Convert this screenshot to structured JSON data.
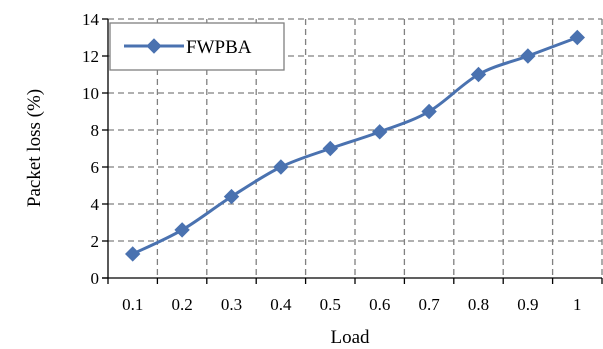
{
  "chart_data": {
    "type": "line",
    "x": [
      0.1,
      0.2,
      0.3,
      0.4,
      0.5,
      0.6,
      0.7,
      0.8,
      0.9,
      1
    ],
    "x_tick_labels": [
      "0.1",
      "0.2",
      "0.3",
      "0.4",
      "0.5",
      "0.6",
      "0.7",
      "0.8",
      "0.9",
      "1"
    ],
    "y_ticks": [
      0,
      2,
      4,
      6,
      8,
      10,
      12,
      14
    ],
    "ylim": [
      0,
      14
    ],
    "xlabel": "Load",
    "ylabel": "Packet loss  (%)",
    "grid": true,
    "legend_position": "top-left",
    "series": [
      {
        "name": "FWPBA",
        "color": "#4a72b0",
        "marker": "diamond",
        "values": [
          1.3,
          2.6,
          4.4,
          6.0,
          7.0,
          7.9,
          9.0,
          11.0,
          12.0,
          13.0
        ]
      }
    ]
  }
}
